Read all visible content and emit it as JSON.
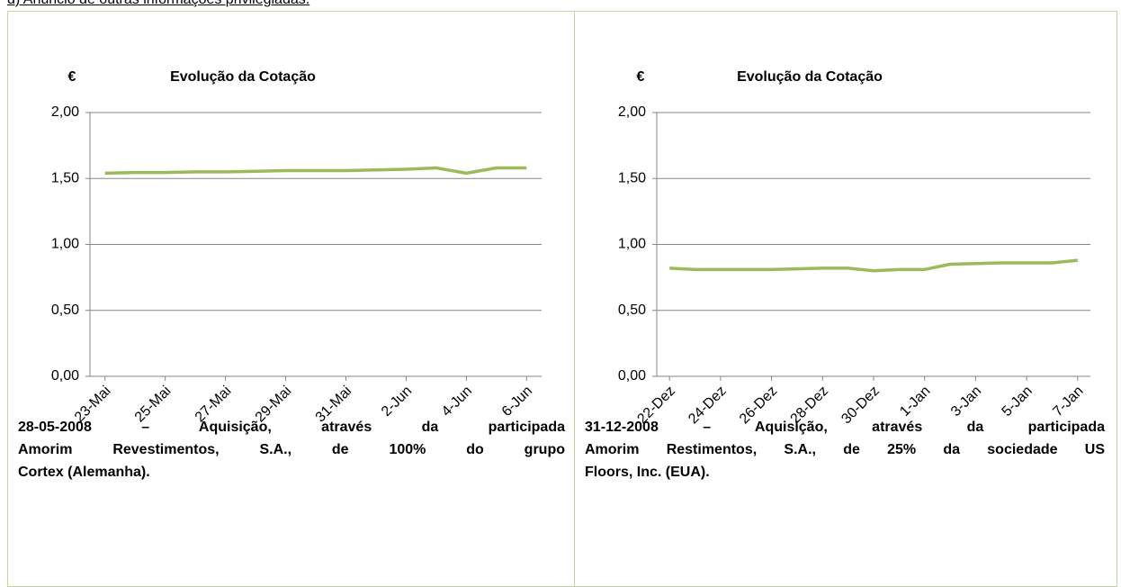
{
  "header": {
    "text": "d) Anúncio de outras informações privilegiadas."
  },
  "chart_data": [
    {
      "type": "line",
      "title": "Evolução da Cotação",
      "y_unit": "€",
      "categories": [
        "23-Mai",
        null,
        "25-Mai",
        null,
        "27-Mai",
        null,
        "29-Mai",
        null,
        "31-Mai",
        null,
        "2-Jun",
        null,
        "4-Jun",
        null,
        "6-Jun"
      ],
      "values": [
        1.54,
        1.545,
        1.545,
        1.55,
        1.55,
        1.555,
        1.56,
        1.56,
        1.56,
        1.565,
        1.57,
        1.58,
        1.54,
        1.58,
        1.58
      ],
      "color": "#9bbb59",
      "grid": true,
      "ylim": [
        0,
        2
      ],
      "yticks": [
        {
          "value": 0,
          "label": "0,00"
        },
        {
          "value": 0.5,
          "label": "0,50"
        },
        {
          "value": 1,
          "label": "1,00"
        },
        {
          "value": 1.5,
          "label": "1,50"
        },
        {
          "value": 2,
          "label": "2,00"
        }
      ]
    },
    {
      "type": "line",
      "title": "Evolução da Cotação",
      "y_unit": "€",
      "categories": [
        "22-Dez",
        null,
        "24-Dez",
        null,
        "26-Dez",
        null,
        "28-Dez",
        null,
        "30-Dez",
        null,
        "1-Jan",
        null,
        "3-Jan",
        null,
        "5-Jan",
        null,
        "7-Jan"
      ],
      "values": [
        0.82,
        0.81,
        0.81,
        0.81,
        0.81,
        0.815,
        0.82,
        0.82,
        0.8,
        0.81,
        0.81,
        0.85,
        0.855,
        0.86,
        0.86,
        0.86,
        0.88
      ],
      "color": "#9bbb59",
      "grid": true,
      "ylim": [
        0,
        2
      ],
      "yticks": [
        {
          "value": 0,
          "label": "0,00"
        },
        {
          "value": 0.5,
          "label": "0,50"
        },
        {
          "value": 1,
          "label": "1,00"
        },
        {
          "value": 1.5,
          "label": "1,50"
        },
        {
          "value": 2,
          "label": "2,00"
        }
      ]
    }
  ],
  "captions": [
    [
      "28-05-2008 – Aquisição, através da participada",
      "Amorim Revestimentos, S.A., de 100% do grupo",
      "Cortex (Alemanha)."
    ],
    [
      "31-12-2008 – Aquisição, através da participada",
      "Amorim Restimentos, S.A., de 25% da sociedade US",
      "Floors, Inc. (EUA)."
    ]
  ]
}
